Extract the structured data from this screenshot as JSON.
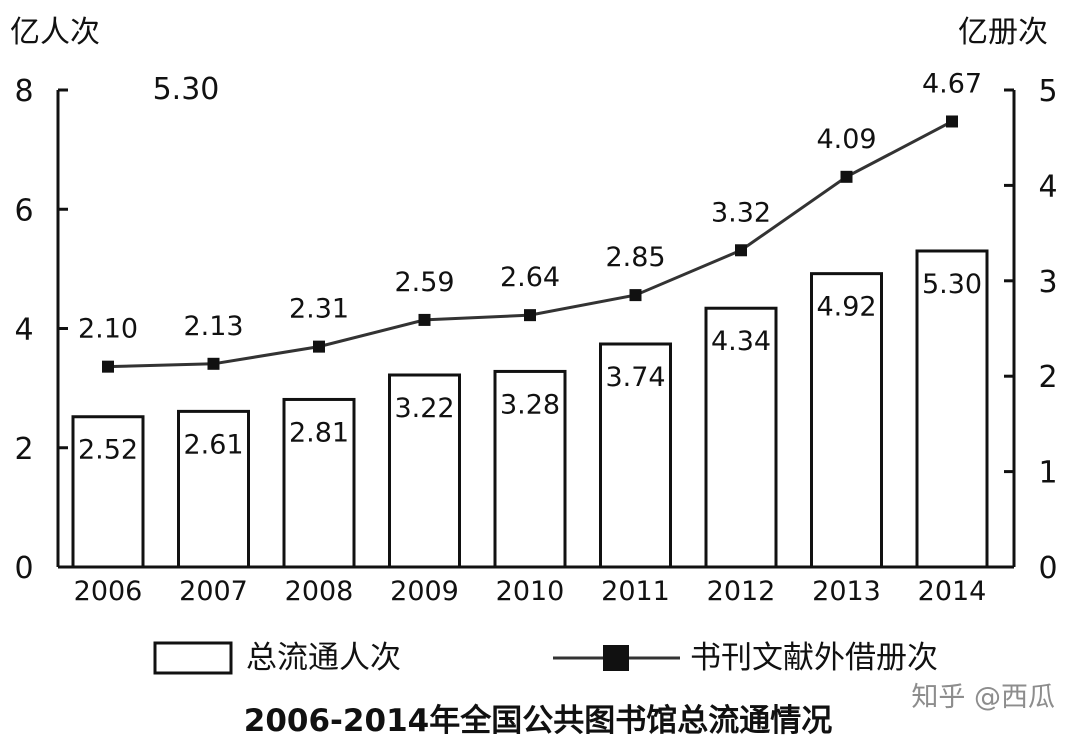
{
  "chart_data": {
    "type": "bar+line",
    "title": "2006-2014年全国公共图书馆总流通情况",
    "categories": [
      "2006",
      "2007",
      "2008",
      "2009",
      "2010",
      "2011",
      "2012",
      "2013",
      "2014"
    ],
    "left_axis": {
      "unit": "亿人次",
      "range": [
        0,
        8
      ],
      "ticks": [
        "0",
        "2",
        "4",
        "6",
        "8"
      ]
    },
    "right_axis": {
      "unit": "亿册次",
      "range": [
        0,
        5
      ],
      "ticks": [
        "0",
        "1",
        "2",
        "3",
        "4",
        "5"
      ]
    },
    "series": [
      {
        "name": "总流通人次",
        "type": "bar",
        "axis": "left",
        "values": [
          2.52,
          2.61,
          2.81,
          3.22,
          3.28,
          3.74,
          4.34,
          4.92,
          5.3
        ],
        "labels": [
          "2.52",
          "2.61",
          "2.81",
          "3.22",
          "3.28",
          "3.74",
          "4.34",
          "4.92",
          "5.30"
        ]
      },
      {
        "name": "书刊文献外借册次",
        "type": "line",
        "axis": "right",
        "values": [
          2.1,
          2.13,
          2.31,
          2.59,
          2.64,
          2.85,
          3.32,
          4.09,
          4.67
        ],
        "labels": [
          "2.10",
          "2.13",
          "2.31",
          "2.59",
          "2.64",
          "2.85",
          "3.32",
          "4.09",
          "4.67"
        ]
      }
    ],
    "extra_text": {
      "top_floating_label": "5.30",
      "watermark": "知乎 @西瓜"
    },
    "colors": {
      "background": "#ffffff",
      "primary": "#111111",
      "line": "#333333",
      "watermark": "#8d8d8d"
    },
    "grid": false,
    "legend": "bottom"
  }
}
